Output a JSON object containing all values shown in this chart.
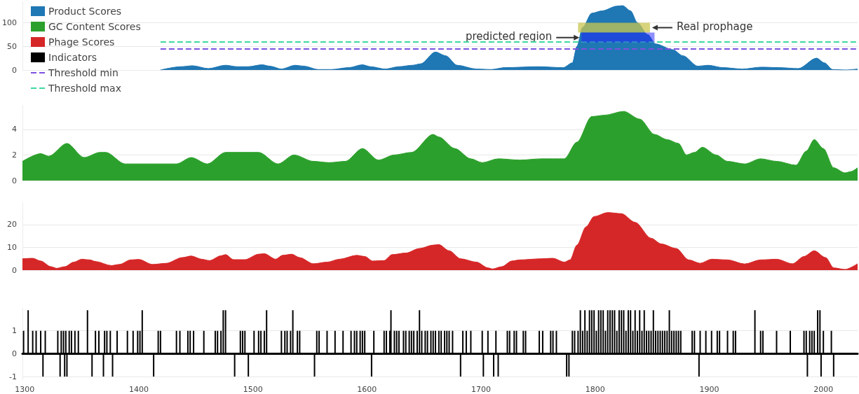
{
  "chart_data": [
    {
      "type": "area",
      "legend": "left",
      "grid": "y",
      "tick_labels": "y",
      "xlim": [
        1298,
        2030
      ],
      "xticks": [
        1300,
        1400,
        1500,
        1600,
        1700,
        1800,
        1900,
        2000
      ],
      "ylim": [
        0,
        145
      ],
      "yticks": [
        0,
        50,
        100
      ],
      "series": [
        {
          "name": "Product Scores",
          "color": "#1f77b4",
          "x": [
            1419,
            1437,
            1447,
            1461,
            1476,
            1486,
            1496,
            1508,
            1515,
            1525,
            1537,
            1545,
            1557,
            1569,
            1584,
            1596,
            1603,
            1616,
            1628,
            1640,
            1647,
            1660,
            1669,
            1679,
            1696,
            1709,
            1721,
            1750,
            1772,
            1780,
            1784,
            1789,
            1797,
            1806,
            1819,
            1824,
            1831,
            1837,
            1846,
            1853,
            1868,
            1877,
            1890,
            1899,
            1912,
            1929,
            1946,
            1961,
            1978,
            1994,
            2001,
            2008,
            2019,
            2030
          ],
          "values": [
            0,
            7,
            9,
            3,
            10,
            7,
            7,
            11,
            8,
            2,
            10,
            8,
            1,
            1,
            5,
            11,
            7,
            2,
            7,
            10,
            13,
            38,
            30,
            10,
            2,
            1,
            5,
            7,
            5,
            15,
            50,
            90,
            120,
            125,
            135,
            136,
            125,
            100,
            75,
            55,
            43,
            30,
            8,
            10,
            5,
            2,
            6,
            5,
            3,
            25,
            15,
            1,
            0,
            2
          ]
        }
      ],
      "ref_lines": [
        {
          "axis": "y",
          "value": 45,
          "label": "Threshold min",
          "color": "#7b52e0",
          "line_style": "dashed"
        },
        {
          "axis": "y",
          "value": 59,
          "label": "Threshold max",
          "color": "#3fd9a0",
          "line_style": "dashed"
        }
      ],
      "bands": [
        {
          "axis": "x",
          "from": 1785,
          "to": 1848,
          "label": "Real prophage",
          "color": "#c9c64f"
        },
        {
          "axis": "x",
          "from": 1788,
          "to": 1852,
          "label": "predicted region",
          "color": "#2020ff"
        }
      ]
    },
    {
      "type": "area",
      "grid": "y",
      "tick_labels": "y",
      "xlim": [
        1298,
        2030
      ],
      "xticks": [
        1300,
        1400,
        1500,
        1600,
        1700,
        1800,
        1900,
        2000
      ],
      "ylim": [
        0,
        5.9
      ],
      "yticks": [
        0,
        2,
        4
      ],
      "series": [
        {
          "name": "GC Content Scores",
          "color": "#2ca02c",
          "x": [
            1298,
            1314,
            1321,
            1337,
            1352,
            1366,
            1371,
            1388,
            1395,
            1433,
            1446,
            1460,
            1476,
            1505,
            1522,
            1536,
            1553,
            1567,
            1581,
            1596,
            1610,
            1624,
            1639,
            1658,
            1663,
            1677,
            1691,
            1701,
            1715,
            1734,
            1753,
            1773,
            1784,
            1797,
            1808,
            1825,
            1839,
            1852,
            1863,
            1873,
            1880,
            1887,
            1894,
            1906,
            1916,
            1931,
            1945,
            1959,
            1976,
            1985,
            1992,
            2000,
            2009,
            2019,
            2024,
            2030
          ],
          "values": [
            1.5,
            2.1,
            1.9,
            2.9,
            1.8,
            2.2,
            2.2,
            1.3,
            1.3,
            1.3,
            1.8,
            1.3,
            2.2,
            2.2,
            1.3,
            2.0,
            1.5,
            1.4,
            1.5,
            2.5,
            1.6,
            2.0,
            2.2,
            3.6,
            3.4,
            2.5,
            1.7,
            1.4,
            1.7,
            1.6,
            1.7,
            1.7,
            3.0,
            5.0,
            5.1,
            5.4,
            4.8,
            3.6,
            3.2,
            2.9,
            2.0,
            2.2,
            2.6,
            2.0,
            1.5,
            1.3,
            1.7,
            1.5,
            1.2,
            2.3,
            3.2,
            2.5,
            1.0,
            0.6,
            0.7,
            1.0
          ]
        }
      ]
    },
    {
      "type": "area",
      "grid": "y",
      "tick_labels": "y",
      "xlim": [
        1298,
        2030
      ],
      "xticks": [
        1300,
        1400,
        1500,
        1600,
        1700,
        1800,
        1900,
        2000
      ],
      "ylim": [
        0,
        29.5
      ],
      "yticks": [
        0,
        10,
        20
      ],
      "series": [
        {
          "name": "Phage Scores",
          "color": "#d62728",
          "x": [
            1298,
            1307,
            1314,
            1323,
            1328,
            1335,
            1343,
            1350,
            1357,
            1362,
            1376,
            1383,
            1393,
            1400,
            1412,
            1424,
            1438,
            1446,
            1455,
            1462,
            1472,
            1476,
            1483,
            1493,
            1505,
            1510,
            1520,
            1526,
            1534,
            1541,
            1553,
            1565,
            1576,
            1591,
            1598,
            1605,
            1615,
            1622,
            1634,
            1646,
            1658,
            1663,
            1672,
            1682,
            1696,
            1706,
            1710,
            1718,
            1727,
            1734,
            1753,
            1763,
            1773,
            1778,
            1784,
            1792,
            1799,
            1811,
            1823,
            1835,
            1849,
            1858,
            1871,
            1882,
            1892,
            1902,
            1916,
            1931,
            1945,
            1959,
            1973,
            1983,
            1992,
            2002,
            2009,
            2019,
            2030
          ],
          "values": [
            5.0,
            5.2,
            4,
            1.5,
            0.8,
            1.5,
            3.5,
            4.8,
            4.5,
            3.8,
            2.0,
            2.5,
            4.5,
            4.7,
            2.5,
            3.0,
            5.5,
            6.2,
            4.8,
            4.2,
            6.3,
            6.8,
            4.6,
            4.6,
            7.0,
            7.2,
            4.8,
            6.5,
            7.0,
            5.5,
            2.8,
            3.5,
            4.8,
            6.5,
            6.0,
            4.0,
            4.2,
            6.8,
            7.5,
            9.5,
            11.0,
            11.2,
            8.5,
            5.0,
            3.5,
            1.0,
            0.5,
            1.5,
            4.0,
            4.5,
            5.0,
            5.2,
            3.5,
            4.5,
            11,
            19,
            23.5,
            25.3,
            24.8,
            21,
            14,
            11.5,
            9.5,
            4.5,
            3.0,
            4.8,
            4.5,
            2.7,
            4.5,
            4.8,
            2.8,
            6.0,
            8.5,
            5.5,
            1.0,
            0.3,
            2.8
          ]
        }
      ]
    },
    {
      "type": "bar",
      "grid": "y",
      "xlim": [
        1298,
        2030
      ],
      "xticks": [
        1300,
        1400,
        1500,
        1600,
        1700,
        1800,
        1900,
        2000
      ],
      "ylim": [
        -1.15,
        2
      ],
      "yticks": [
        -1,
        0,
        1
      ],
      "series": [
        {
          "name": "Indicators",
          "color": "#000000",
          "x": [
            1299,
            1303,
            1307,
            1310,
            1314,
            1316,
            1318,
            1329,
            1331,
            1332,
            1334,
            1335,
            1336,
            1337,
            1339,
            1341,
            1344,
            1347,
            1355,
            1359,
            1362,
            1365,
            1369,
            1370,
            1372,
            1375,
            1377,
            1381,
            1390,
            1395,
            1399,
            1401,
            1403,
            1413,
            1417,
            1419,
            1433,
            1436,
            1443,
            1445,
            1448,
            1457,
            1467,
            1469,
            1472,
            1474,
            1476,
            1484,
            1489,
            1491,
            1493,
            1496,
            1501,
            1505,
            1507,
            1510,
            1512,
            1525,
            1528,
            1530,
            1533,
            1535,
            1539,
            1541,
            1554,
            1556,
            1558,
            1565,
            1572,
            1579,
            1586,
            1589,
            1591,
            1594,
            1596,
            1598,
            1604,
            1606,
            1615,
            1617,
            1620,
            1621,
            1624,
            1626,
            1628,
            1632,
            1634,
            1637,
            1639,
            1641,
            1644,
            1646,
            1648,
            1651,
            1653,
            1656,
            1658,
            1660,
            1663,
            1665,
            1668,
            1670,
            1672,
            1675,
            1682,
            1684,
            1687,
            1691,
            1701,
            1702,
            1706,
            1711,
            1713,
            1715,
            1723,
            1725,
            1729,
            1731,
            1737,
            1739,
            1751,
            1754,
            1761,
            1763,
            1766,
            1775,
            1777,
            1780,
            1782,
            1785,
            1787,
            1789,
            1791,
            1793,
            1795,
            1797,
            1799,
            1801,
            1803,
            1805,
            1807,
            1809,
            1811,
            1813,
            1815,
            1817,
            1819,
            1821,
            1823,
            1825,
            1827,
            1829,
            1831,
            1833,
            1835,
            1837,
            1839,
            1841,
            1843,
            1845,
            1847,
            1849,
            1851,
            1853,
            1855,
            1857,
            1859,
            1861,
            1863,
            1865,
            1867,
            1869,
            1871,
            1873,
            1875,
            1885,
            1887,
            1891,
            1892,
            1897,
            1902,
            1907,
            1909,
            1916,
            1921,
            1923,
            1940,
            1945,
            1947,
            1959,
            1971,
            1983,
            1985,
            1986,
            1988,
            1990,
            1992,
            1995,
            1997,
            1998,
            2000,
            2007,
            2009
          ],
          "values": [
            1,
            1.9,
            1,
            1,
            1,
            -1,
            1,
            1,
            -1,
            1,
            1,
            -1,
            1,
            -1,
            1,
            1,
            1,
            1,
            1.9,
            -1,
            1,
            1,
            -1,
            1,
            1,
            1,
            -1,
            1,
            1,
            1,
            1,
            1,
            1.9,
            -1,
            1,
            1,
            1,
            1,
            1,
            1,
            1,
            1,
            1,
            1,
            1,
            1.9,
            1.9,
            -1,
            1,
            1,
            1,
            -1,
            1,
            1,
            1,
            1,
            1.9,
            1,
            1,
            1,
            1,
            1.9,
            1,
            1,
            -1,
            1,
            1,
            1,
            1,
            1,
            1,
            1,
            1,
            1,
            1,
            1,
            -1,
            1,
            1,
            1,
            1,
            1.9,
            1,
            1,
            1,
            1,
            1,
            1,
            1,
            1,
            1,
            1.9,
            1,
            1,
            1,
            1,
            1,
            1,
            1,
            1,
            1,
            1,
            1,
            1,
            -1,
            1,
            1,
            1,
            1,
            -1,
            1,
            -1,
            1,
            -1,
            1,
            1,
            1,
            1,
            1,
            1,
            1,
            1,
            1,
            1,
            1,
            -1,
            -1,
            1,
            1,
            1,
            1.9,
            1,
            1.9,
            1,
            1.9,
            1.9,
            1.9,
            1,
            1.9,
            1.9,
            1.9,
            1,
            1.9,
            1.9,
            1.9,
            1.9,
            1,
            1.9,
            1.9,
            1.9,
            1,
            1.9,
            1.9,
            1,
            1.9,
            1,
            1.9,
            1,
            1.9,
            1,
            1,
            1,
            1.9,
            1,
            1,
            1,
            1,
            1,
            1,
            1.9,
            1,
            1,
            1,
            1,
            1,
            1,
            1,
            -1,
            1,
            1,
            1,
            1,
            1,
            1,
            1,
            1,
            1.9,
            1,
            1,
            1,
            1,
            1,
            1,
            -1,
            1,
            1,
            1,
            1.9,
            1.9,
            -1,
            1,
            1,
            -1
          ]
        }
      ]
    }
  ]
}
